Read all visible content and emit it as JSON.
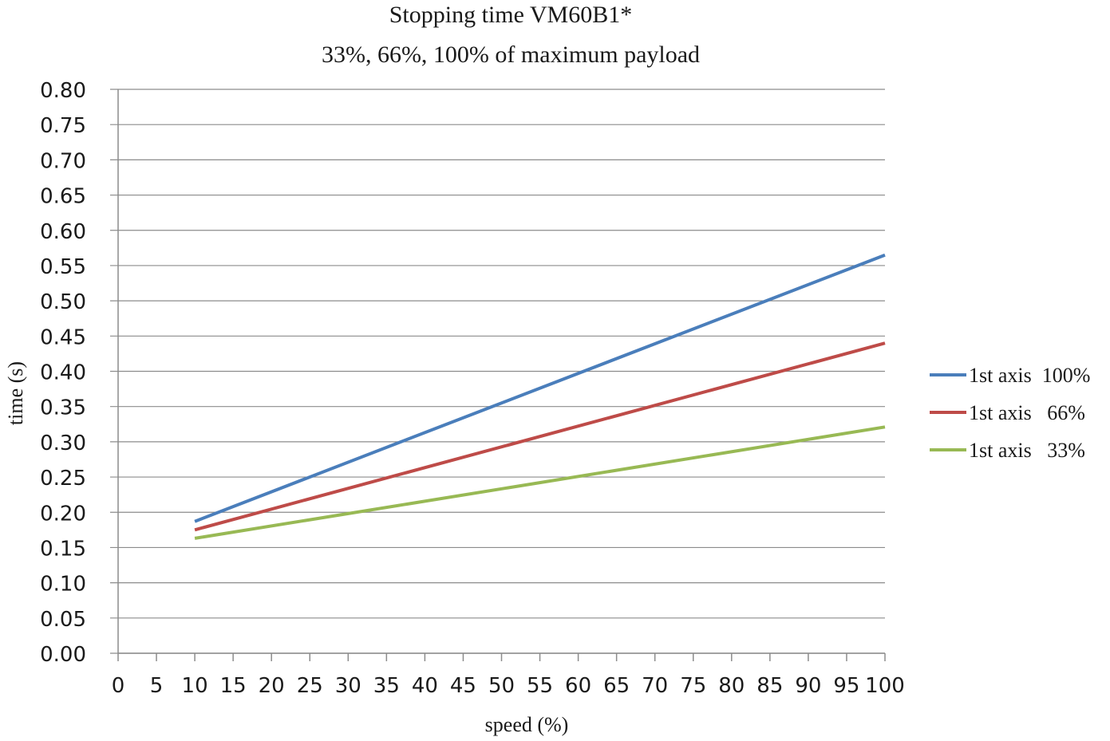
{
  "chart_data": {
    "type": "line",
    "title": "Stopping time  VM60B1*",
    "subtitle": "33%, 66%, 100% of maximum payload",
    "xlabel": "speed (%)",
    "ylabel": "time (s)",
    "xlim": [
      0,
      100
    ],
    "ylim": [
      0,
      0.8
    ],
    "x_ticks": [
      "0",
      "5",
      "10",
      "15",
      "20",
      "25",
      "30",
      "35",
      "40",
      "45",
      "50",
      "55",
      "60",
      "65",
      "70",
      "75",
      "80",
      "85",
      "90",
      "95",
      "100"
    ],
    "y_ticks": [
      "0.00",
      "0.05",
      "0.10",
      "0.15",
      "0.20",
      "0.25",
      "0.30",
      "0.35",
      "0.40",
      "0.45",
      "0.50",
      "0.55",
      "0.60",
      "0.65",
      "0.70",
      "0.75",
      "0.80"
    ],
    "grid": "horizontal",
    "legend_position": "right",
    "series": [
      {
        "name": "1st axis  100%",
        "color": "#4a7ebb",
        "x": [
          10,
          100
        ],
        "y": [
          0.187,
          0.565
        ]
      },
      {
        "name": "1st axis   66%",
        "color": "#be4b48",
        "x": [
          10,
          100
        ],
        "y": [
          0.175,
          0.44
        ]
      },
      {
        "name": "1st axis   33%",
        "color": "#98b954",
        "x": [
          10,
          100
        ],
        "y": [
          0.163,
          0.321
        ]
      }
    ]
  }
}
